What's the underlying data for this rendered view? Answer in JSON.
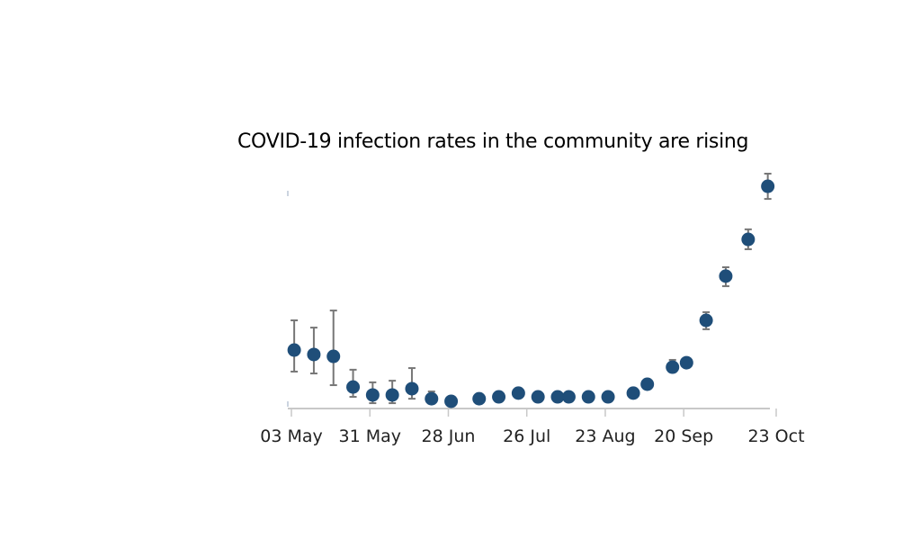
{
  "chart_data": {
    "type": "scatter",
    "title": "COVID-19 infection rates in the community are rising",
    "xlabel": "",
    "ylabel": "",
    "x_tick_labels": [
      "03 May",
      "31 May",
      "28 Jun",
      "26 Jul",
      "23 Aug",
      "20 Sep",
      "23 Oct"
    ],
    "x_tick_days": [
      0,
      28,
      56,
      84,
      112,
      140,
      173
    ],
    "ylim": [
      0,
      100
    ],
    "grid": false,
    "legend": "none",
    "series": [
      {
        "name": "Estimated infection rate (relative)",
        "color": "#1f4e79",
        "error_color": "#777777",
        "points": [
          {
            "day": 1,
            "value": 24.6,
            "lo": 15.4,
            "hi": 37.3
          },
          {
            "day": 8,
            "value": 22.7,
            "lo": 14.6,
            "hi": 34.2
          },
          {
            "day": 15,
            "value": 21.9,
            "lo": 9.6,
            "hi": 41.5
          },
          {
            "day": 22,
            "value": 8.8,
            "lo": 4.6,
            "hi": 16.2
          },
          {
            "day": 29,
            "value": 5.4,
            "lo": 1.9,
            "hi": 10.8
          },
          {
            "day": 36,
            "value": 5.4,
            "lo": 1.9,
            "hi": 11.5
          },
          {
            "day": 43,
            "value": 8.1,
            "lo": 3.8,
            "hi": 16.9
          },
          {
            "day": 50,
            "value": 3.8,
            "lo": 2.3,
            "hi": 6.9
          },
          {
            "day": 57,
            "value": 2.7,
            "lo": 1.5,
            "hi": 3.8
          },
          {
            "day": 67,
            "value": 3.8,
            "lo": 3.1,
            "hi": 4.6
          },
          {
            "day": 74,
            "value": 4.6,
            "lo": 3.8,
            "hi": 5.4
          },
          {
            "day": 81,
            "value": 6.2,
            "lo": 5.4,
            "hi": 6.9
          },
          {
            "day": 88,
            "value": 4.6,
            "lo": 3.8,
            "hi": 5.4
          },
          {
            "day": 95,
            "value": 4.6,
            "lo": 3.8,
            "hi": 5.4
          },
          {
            "day": 99,
            "value": 4.6,
            "lo": 3.8,
            "hi": 5.4
          },
          {
            "day": 106,
            "value": 4.6,
            "lo": 3.8,
            "hi": 5.4
          },
          {
            "day": 113,
            "value": 4.6,
            "lo": 3.8,
            "hi": 5.4
          },
          {
            "day": 122,
            "value": 6.2,
            "lo": 5.4,
            "hi": 6.9
          },
          {
            "day": 127,
            "value": 10.0,
            "lo": 9.2,
            "hi": 10.8
          },
          {
            "day": 136,
            "value": 17.3,
            "lo": 15.8,
            "hi": 20.4
          },
          {
            "day": 141,
            "value": 19.2,
            "lo": 18.1,
            "hi": 20.4
          },
          {
            "day": 148,
            "value": 37.3,
            "lo": 33.5,
            "hi": 40.8
          },
          {
            "day": 155,
            "value": 56.2,
            "lo": 51.9,
            "hi": 60.0
          },
          {
            "day": 163,
            "value": 71.9,
            "lo": 67.7,
            "hi": 76.2
          },
          {
            "day": 170,
            "value": 94.6,
            "lo": 89.2,
            "hi": 100.0
          }
        ]
      }
    ]
  }
}
